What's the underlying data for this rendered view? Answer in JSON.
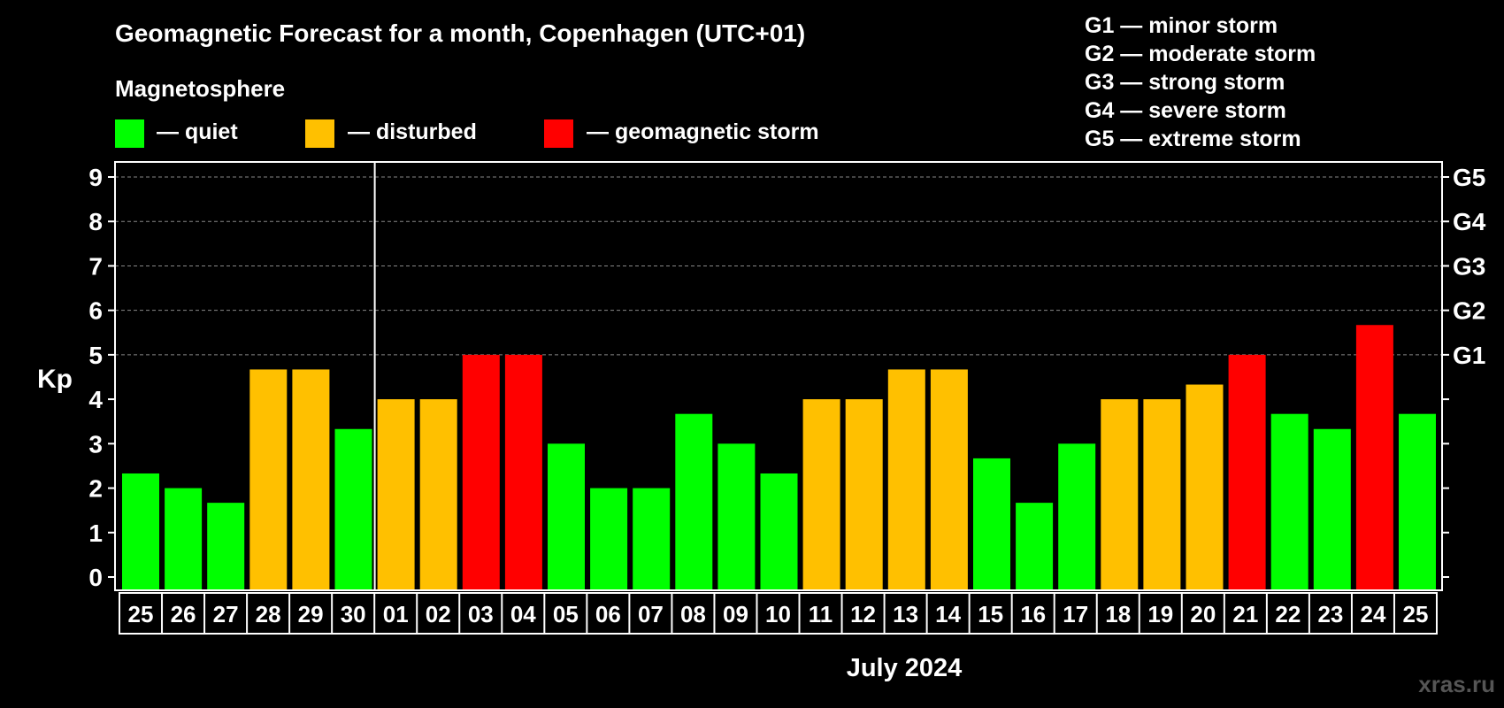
{
  "chart_data": {
    "type": "bar",
    "title": "Geomagnetic Forecast for a month, Copenhagen (UTC+01)",
    "legend_title": "Magnetosphere",
    "legend": [
      {
        "key": "quiet",
        "label": "— quiet",
        "color": "#00ff00"
      },
      {
        "key": "disturbed",
        "label": "— disturbed",
        "color": "#ffc000"
      },
      {
        "key": "storm",
        "label": "— geomagnetic storm",
        "color": "#ff0000"
      }
    ],
    "storm_scale": [
      "G1 — minor storm",
      "G2 — moderate storm",
      "G3 — strong storm",
      "G4 — severe storm",
      "G5 — extreme storm"
    ],
    "ylabel": "Kp",
    "ylim": [
      0,
      9
    ],
    "yticks": [
      "0",
      "1",
      "2",
      "3",
      "4",
      "5",
      "6",
      "7",
      "8",
      "9"
    ],
    "right_ticks": [
      {
        "y": 5,
        "label": "G1"
      },
      {
        "y": 6,
        "label": "G2"
      },
      {
        "y": 7,
        "label": "G3"
      },
      {
        "y": 8,
        "label": "G4"
      },
      {
        "y": 9,
        "label": "G5"
      }
    ],
    "grid": "dashed horizontal lines at Kp 5–9",
    "xlabel": "July 2024",
    "month_separator_after": "30",
    "categories": [
      "25",
      "26",
      "27",
      "28",
      "29",
      "30",
      "01",
      "02",
      "03",
      "04",
      "05",
      "06",
      "07",
      "08",
      "09",
      "10",
      "11",
      "12",
      "13",
      "14",
      "15",
      "16",
      "17",
      "18",
      "19",
      "20",
      "21",
      "22",
      "23",
      "24",
      "25"
    ],
    "values": [
      2.33,
      2.0,
      1.67,
      4.67,
      4.67,
      3.33,
      4.0,
      4.0,
      5.0,
      5.0,
      3.0,
      2.0,
      2.0,
      3.67,
      3.0,
      2.33,
      4.0,
      4.0,
      4.67,
      4.67,
      2.67,
      1.67,
      3.0,
      4.0,
      4.0,
      4.33,
      5.0,
      3.67,
      3.33,
      5.67,
      3.67
    ],
    "status": [
      "quiet",
      "quiet",
      "quiet",
      "disturbed",
      "disturbed",
      "quiet",
      "disturbed",
      "disturbed",
      "storm",
      "storm",
      "quiet",
      "quiet",
      "quiet",
      "quiet",
      "quiet",
      "quiet",
      "disturbed",
      "disturbed",
      "disturbed",
      "disturbed",
      "quiet",
      "quiet",
      "quiet",
      "disturbed",
      "disturbed",
      "disturbed",
      "storm",
      "quiet",
      "quiet",
      "storm",
      "quiet"
    ]
  },
  "watermark": "xras.ru",
  "colors": {
    "background": "#000000",
    "text": "#ffffff",
    "grid": "#888888",
    "axis": "#ffffff"
  }
}
